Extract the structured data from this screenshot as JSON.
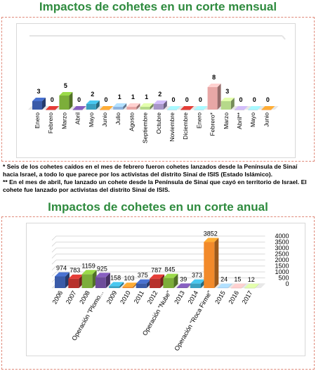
{
  "title_monthly": "Impactos de cohetes en un corte mensual",
  "title_annual": "Impactos de cohetes en un corte anual",
  "notes": [
    "* Seis de los cohetes caídos en el mes de febrero fueron cohetes lanzados desde la Península de Sinaí hacia Israel, a todo lo que parece por  los activistas del distrito Sinaí de ISIS (Estado Islámico).",
    "** En el mes de abril, fue lanzado un cohete desde la Península de Sinaí que cayó en territorio de Israel. El cohete fue lanzado por activistas del distrito Sinaí de ISIS."
  ],
  "colors": {
    "title": "#2e8b3e",
    "blue": "#3a5ba8",
    "red": "#b7312c",
    "green": "#7cae3a",
    "purple": "#6d4c9a",
    "teal": "#3aa0c0",
    "orange": "#f28a2a",
    "lightblue": "#8fb4de",
    "pink": "#e8a7a6",
    "lightgreen": "#b6d98a",
    "lavender": "#a897c8",
    "lightteal": "#86c7d9",
    "panel_border": "#e08a7a"
  },
  "chart_data": [
    {
      "type": "bar",
      "title": "Impactos de cohetes en un corte mensual",
      "categories": [
        "Enero",
        "Febrero",
        "Marzo",
        "Abril",
        "Mayo",
        "Junio",
        "Julio",
        "Agosto",
        "Septiembre",
        "Octubre",
        "Noviembre",
        "Diciembre",
        "Enero",
        "Febrero*",
        "Marzo",
        "Abril**",
        "Mayo",
        "Junio"
      ],
      "values": [
        3,
        0,
        5,
        0,
        2,
        0,
        1,
        1,
        1,
        2,
        0,
        0,
        0,
        8,
        3,
        0,
        0,
        0
      ],
      "ylim": [
        0,
        8
      ],
      "grid": false,
      "legend": "none"
    },
    {
      "type": "bar",
      "title": "Impactos de cohetes en un corte anual",
      "categories": [
        "2006",
        "2007",
        "2008",
        "Operación \"Plomo...",
        "2009",
        "2010",
        "2011",
        "2012",
        "Operación \"Nube\"",
        "2013",
        "2014",
        "Operación \"Roca Firme\"",
        "2015",
        "2016",
        "2017"
      ],
      "values": [
        974,
        783,
        1159,
        925,
        158,
        103,
        375,
        787,
        845,
        39,
        373,
        3852,
        24,
        15,
        12
      ],
      "yticks": [
        "0",
        "500",
        "1000",
        "1500",
        "2000",
        "2500",
        "3000",
        "3500",
        "4000"
      ],
      "ylim": [
        0,
        4000
      ],
      "grid": true,
      "legend": "none"
    }
  ]
}
